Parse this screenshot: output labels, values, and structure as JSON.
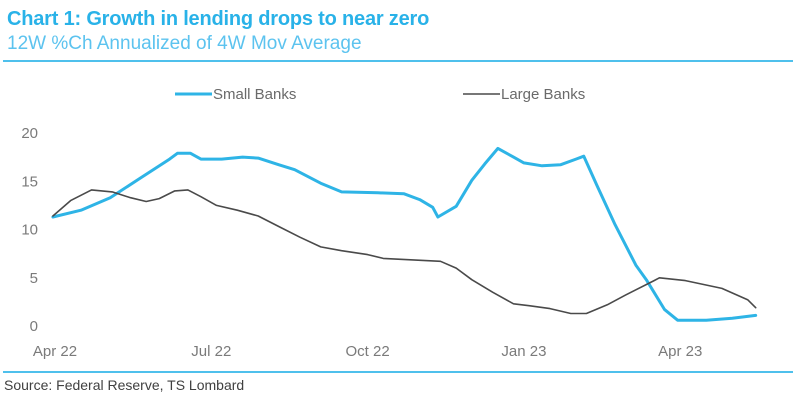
{
  "header": {
    "title": "Chart 1: Growth in lending drops to near zero",
    "subtitle": "12W %Ch Annualized of 4W Mov Average"
  },
  "footer": {
    "source": "Source: Federal Reserve, TS Lombard"
  },
  "colors": {
    "accent": "#29b2e8",
    "small_banks": "#2eb4e6",
    "large_banks": "#4a4a4a"
  },
  "chart_data": {
    "type": "line",
    "title": "Chart 1: Growth in lending drops to near zero",
    "subtitle": "12W %Ch Annualized of 4W Mov Average",
    "xlabel": "",
    "ylabel": "",
    "ylim": [
      0,
      20
    ],
    "yticks": [
      0,
      5,
      10,
      15,
      20
    ],
    "xlim_months": [
      0,
      13.6
    ],
    "xticks": [
      {
        "label": "Apr 22",
        "month": 0
      },
      {
        "label": "Jul 22",
        "month": 3
      },
      {
        "label": "Oct 22",
        "month": 6
      },
      {
        "label": "Jan 23",
        "month": 9
      },
      {
        "label": "Apr 23",
        "month": 12
      }
    ],
    "x_unit": "months since Apr 2022",
    "grid": false,
    "legend_position": "top-center",
    "series": [
      {
        "name": "Small Banks",
        "color": "#2eb4e6",
        "x": [
          -0.04,
          0.5,
          1.06,
          1.63,
          2.2,
          2.35,
          2.6,
          2.8,
          3.2,
          3.6,
          3.9,
          4.3,
          4.6,
          5.1,
          5.5,
          6.2,
          6.7,
          7.0,
          7.25,
          7.35,
          7.7,
          8.0,
          8.25,
          8.5,
          8.8,
          9.0,
          9.35,
          9.7,
          10.0,
          10.15,
          10.4,
          10.75,
          11.15,
          11.35,
          11.7,
          11.95,
          12.5,
          13.0,
          13.45
        ],
        "y": [
          11.3,
          12.0,
          13.3,
          15.3,
          17.3,
          17.9,
          17.9,
          17.3,
          17.3,
          17.5,
          17.4,
          16.7,
          16.2,
          14.8,
          13.9,
          13.8,
          13.7,
          13.1,
          12.3,
          11.3,
          12.4,
          15.1,
          16.8,
          18.4,
          17.5,
          16.9,
          16.6,
          16.7,
          17.3,
          17.6,
          14.6,
          10.5,
          6.3,
          4.8,
          1.7,
          0.6,
          0.6,
          0.8,
          1.1
        ]
      },
      {
        "name": "Large Banks",
        "color": "#4a4a4a",
        "x": [
          -0.04,
          0.3,
          0.7,
          1.1,
          1.45,
          1.75,
          2.0,
          2.3,
          2.55,
          2.8,
          3.1,
          3.5,
          3.9,
          4.3,
          4.7,
          5.1,
          5.5,
          6.0,
          6.3,
          7.4,
          7.7,
          8.0,
          8.4,
          8.8,
          9.1,
          9.5,
          9.9,
          10.2,
          10.6,
          10.95,
          11.5,
          11.6,
          12.1,
          12.8,
          13.3,
          13.45
        ],
        "y": [
          11.4,
          13.0,
          14.1,
          13.9,
          13.3,
          12.9,
          13.2,
          14.0,
          14.1,
          13.4,
          12.5,
          12.0,
          11.4,
          10.3,
          9.2,
          8.2,
          7.8,
          7.4,
          7.0,
          6.7,
          6.0,
          4.8,
          3.5,
          2.3,
          2.1,
          1.8,
          1.3,
          1.3,
          2.2,
          3.2,
          4.7,
          5.0,
          4.7,
          3.9,
          2.7,
          1.9
        ]
      }
    ]
  },
  "legend": [
    {
      "label": "Small Banks",
      "color": "#2eb4e6"
    },
    {
      "label": "Large Banks",
      "color": "#4a4a4a"
    }
  ]
}
